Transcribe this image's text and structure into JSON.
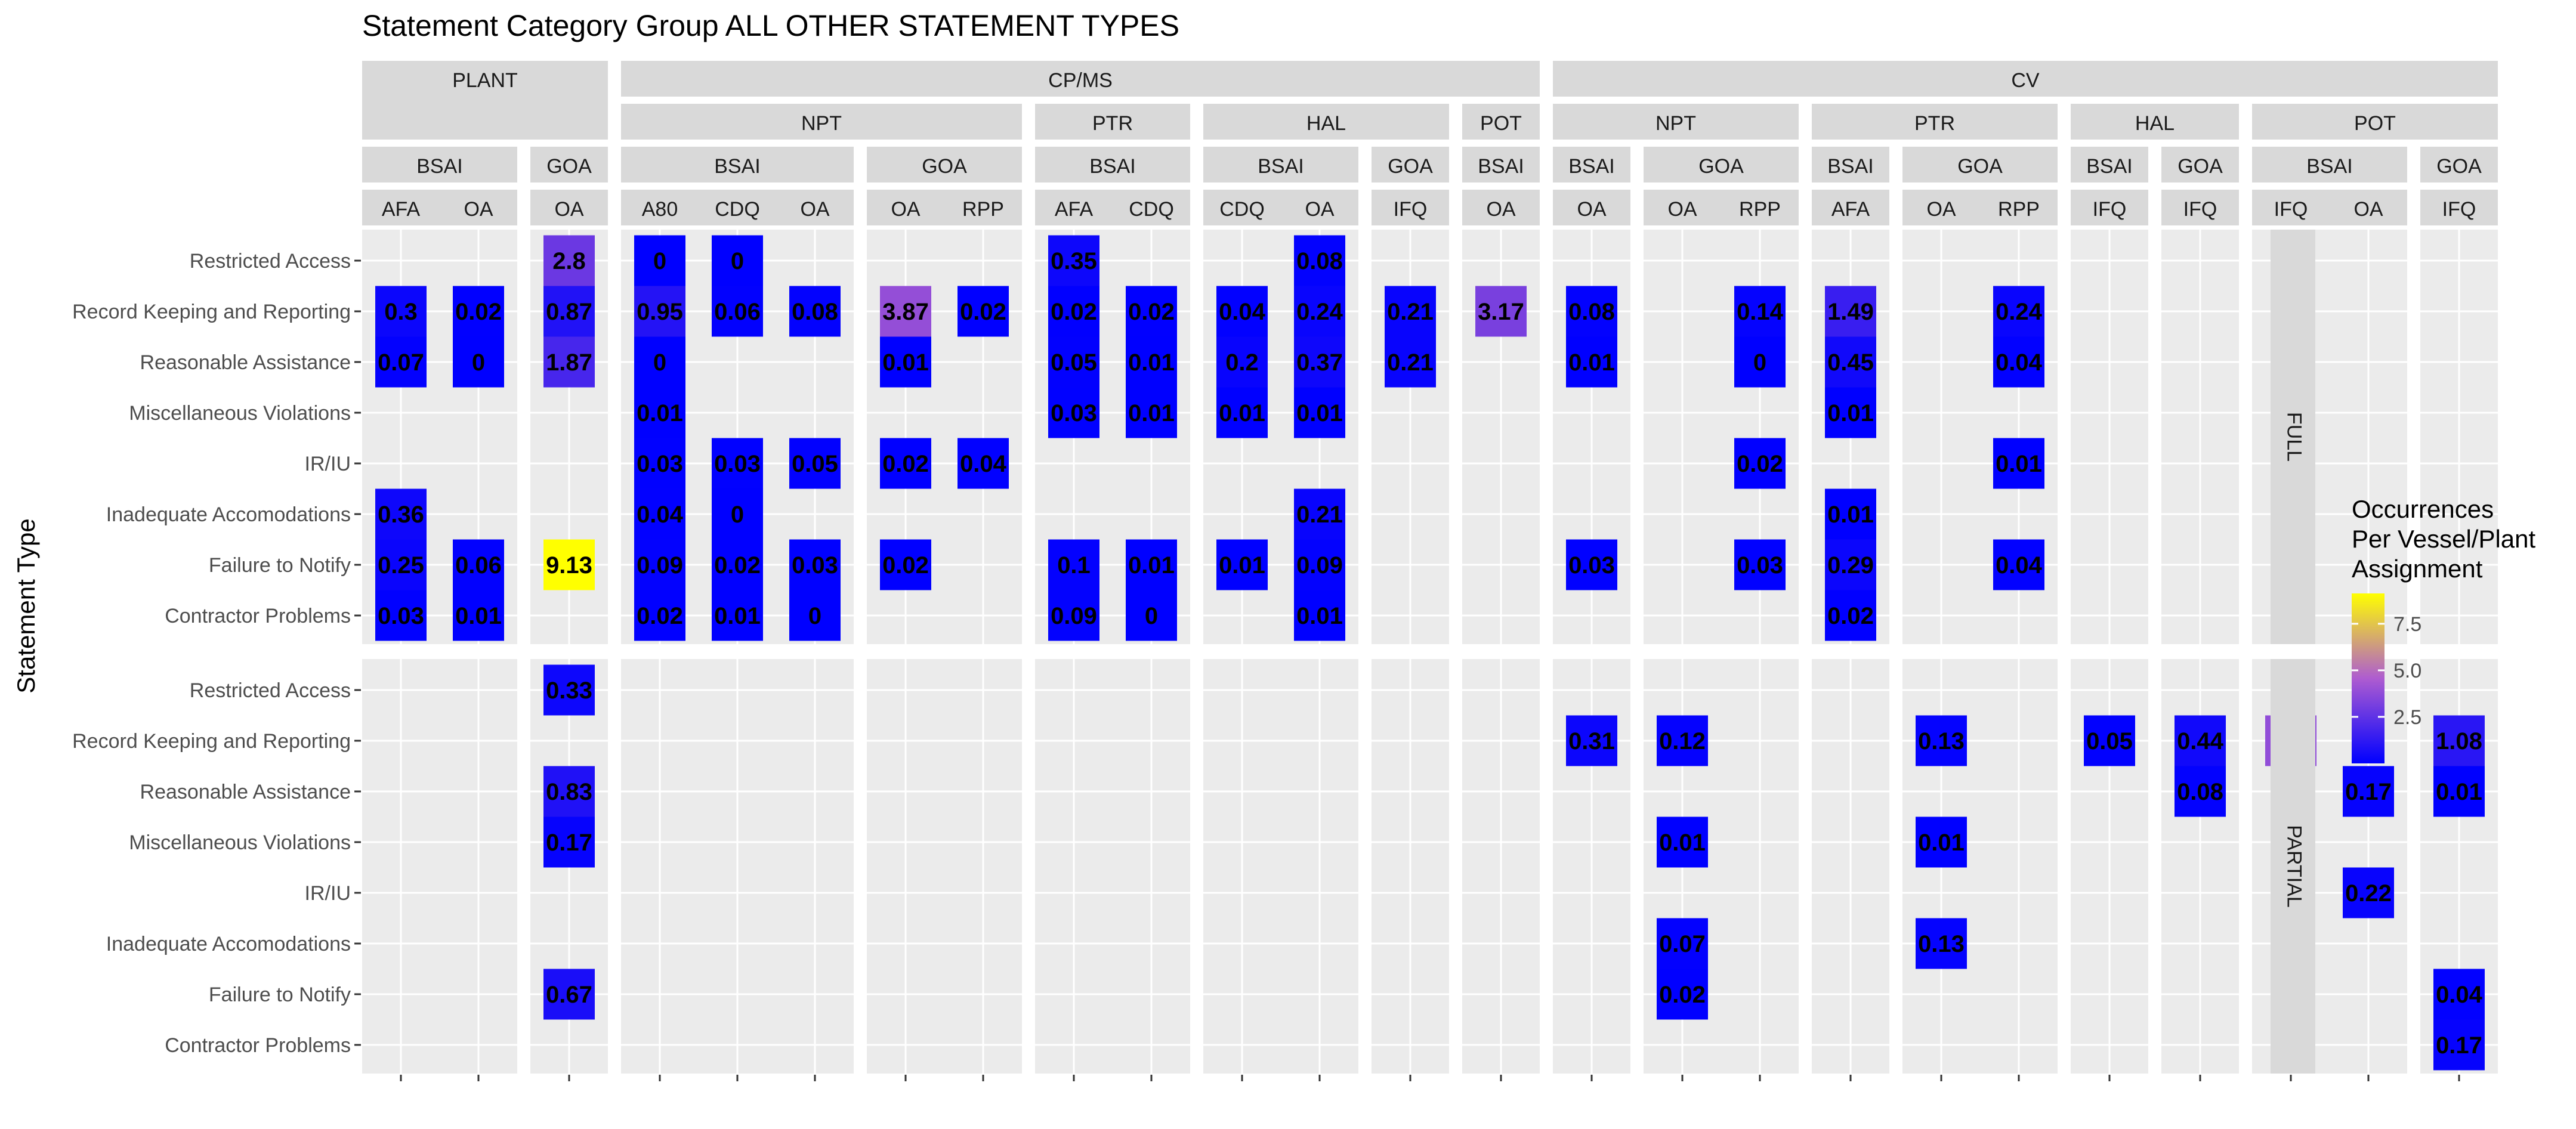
{
  "chart_data": {
    "type": "heatmap",
    "title": "Statement Category Group ALL OTHER STATEMENT TYPES",
    "ylabel": "Statement Type",
    "xlabel": "",
    "y_categories": [
      "Restricted Access",
      "Record Keeping and Reporting",
      "Reasonable Assistance",
      "Miscellaneous Violations",
      "IR/IU",
      "Inadequate Accomodations",
      "Failure to Notify",
      "Contractor Problems"
    ],
    "row_panels": [
      "FULL",
      "PARTIAL"
    ],
    "legend": {
      "title_lines": [
        "Occurrences",
        "Per Vessel/Plant",
        "Assignment"
      ],
      "ticks": [
        2.5,
        5.0,
        7.5
      ],
      "tick_labels": [
        "2.5",
        "5.0",
        "7.5"
      ],
      "range": [
        0.0,
        9.13
      ],
      "colors": [
        "#0000FF",
        "#FFFF00"
      ],
      "position": "right"
    },
    "panels": [
      {
        "group": "PLANT",
        "sub": "",
        "area": "BSAI",
        "columns": [
          "AFA",
          "OA"
        ]
      },
      {
        "group": "PLANT",
        "sub": "",
        "area": "GOA",
        "columns": [
          "OA"
        ]
      },
      {
        "group": "CP/MS",
        "sub": "NPT",
        "area": "BSAI",
        "columns": [
          "A80",
          "CDQ",
          "OA"
        ]
      },
      {
        "group": "CP/MS",
        "sub": "NPT",
        "area": "GOA",
        "columns": [
          "OA",
          "RPP"
        ]
      },
      {
        "group": "CP/MS",
        "sub": "PTR",
        "area": "BSAI",
        "columns": [
          "AFA",
          "CDQ"
        ]
      },
      {
        "group": "CP/MS",
        "sub": "HAL",
        "area": "BSAI",
        "columns": [
          "CDQ",
          "OA"
        ]
      },
      {
        "group": "CP/MS",
        "sub": "HAL",
        "area": "GOA",
        "columns": [
          "IFQ"
        ]
      },
      {
        "group": "CP/MS",
        "sub": "POT",
        "area": "BSAI",
        "columns": [
          "OA"
        ]
      },
      {
        "group": "CV",
        "sub": "NPT",
        "area": "BSAI",
        "columns": [
          "OA"
        ]
      },
      {
        "group": "CV",
        "sub": "NPT",
        "area": "GOA",
        "columns": [
          "OA",
          "RPP"
        ]
      },
      {
        "group": "CV",
        "sub": "PTR",
        "area": "BSAI",
        "columns": [
          "AFA"
        ]
      },
      {
        "group": "CV",
        "sub": "PTR",
        "area": "GOA",
        "columns": [
          "OA",
          "RPP"
        ]
      },
      {
        "group": "CV",
        "sub": "HAL",
        "area": "BSAI",
        "columns": [
          "IFQ"
        ]
      },
      {
        "group": "CV",
        "sub": "HAL",
        "area": "GOA",
        "columns": [
          "IFQ"
        ]
      },
      {
        "group": "CV",
        "sub": "POT",
        "area": "BSAI",
        "columns": [
          "IFQ",
          "OA"
        ]
      },
      {
        "group": "CV",
        "sub": "POT",
        "area": "GOA",
        "columns": [
          "IFQ"
        ]
      }
    ],
    "cells": [
      {
        "p": 0,
        "c": 0,
        "row": "FULL",
        "y": 1,
        "v": 0.3,
        "label": "0.3"
      },
      {
        "p": 0,
        "c": 0,
        "row": "FULL",
        "y": 2,
        "v": 0.07,
        "label": "0.07"
      },
      {
        "p": 0,
        "c": 0,
        "row": "FULL",
        "y": 5,
        "v": 0.36,
        "label": "0.36"
      },
      {
        "p": 0,
        "c": 0,
        "row": "FULL",
        "y": 6,
        "v": 0.25,
        "label": "0.25"
      },
      {
        "p": 0,
        "c": 0,
        "row": "FULL",
        "y": 7,
        "v": 0.03,
        "label": "0.03"
      },
      {
        "p": 0,
        "c": 1,
        "row": "FULL",
        "y": 1,
        "v": 0.02,
        "label": "0.02"
      },
      {
        "p": 0,
        "c": 1,
        "row": "FULL",
        "y": 2,
        "v": 0.0,
        "label": "0"
      },
      {
        "p": 0,
        "c": 1,
        "row": "FULL",
        "y": 6,
        "v": 0.06,
        "label": "0.06"
      },
      {
        "p": 0,
        "c": 1,
        "row": "FULL",
        "y": 7,
        "v": 0.01,
        "label": "0.01"
      },
      {
        "p": 1,
        "c": 0,
        "row": "FULL",
        "y": 0,
        "v": 2.8,
        "label": "2.8"
      },
      {
        "p": 1,
        "c": 0,
        "row": "FULL",
        "y": 1,
        "v": 0.87,
        "label": "0.87"
      },
      {
        "p": 1,
        "c": 0,
        "row": "FULL",
        "y": 2,
        "v": 1.87,
        "label": "1.87"
      },
      {
        "p": 1,
        "c": 0,
        "row": "FULL",
        "y": 6,
        "v": 9.13,
        "label": "9.13"
      },
      {
        "p": 1,
        "c": 0,
        "row": "PARTIAL",
        "y": 0,
        "v": 0.33,
        "label": "0.33"
      },
      {
        "p": 1,
        "c": 0,
        "row": "PARTIAL",
        "y": 2,
        "v": 0.83,
        "label": "0.83"
      },
      {
        "p": 1,
        "c": 0,
        "row": "PARTIAL",
        "y": 3,
        "v": 0.17,
        "label": "0.17"
      },
      {
        "p": 1,
        "c": 0,
        "row": "PARTIAL",
        "y": 6,
        "v": 0.67,
        "label": "0.67"
      },
      {
        "p": 2,
        "c": 0,
        "row": "FULL",
        "y": 0,
        "v": 0.0,
        "label": "0"
      },
      {
        "p": 2,
        "c": 0,
        "row": "FULL",
        "y": 1,
        "v": 0.95,
        "label": "0.95"
      },
      {
        "p": 2,
        "c": 0,
        "row": "FULL",
        "y": 2,
        "v": 0.0,
        "label": "0"
      },
      {
        "p": 2,
        "c": 0,
        "row": "FULL",
        "y": 3,
        "v": 0.01,
        "label": "0.01"
      },
      {
        "p": 2,
        "c": 0,
        "row": "FULL",
        "y": 4,
        "v": 0.03,
        "label": "0.03"
      },
      {
        "p": 2,
        "c": 0,
        "row": "FULL",
        "y": 5,
        "v": 0.04,
        "label": "0.04"
      },
      {
        "p": 2,
        "c": 0,
        "row": "FULL",
        "y": 6,
        "v": 0.09,
        "label": "0.09"
      },
      {
        "p": 2,
        "c": 0,
        "row": "FULL",
        "y": 7,
        "v": 0.02,
        "label": "0.02"
      },
      {
        "p": 2,
        "c": 1,
        "row": "FULL",
        "y": 0,
        "v": 0.0,
        "label": "0"
      },
      {
        "p": 2,
        "c": 1,
        "row": "FULL",
        "y": 1,
        "v": 0.06,
        "label": "0.06"
      },
      {
        "p": 2,
        "c": 1,
        "row": "FULL",
        "y": 4,
        "v": 0.03,
        "label": "0.03"
      },
      {
        "p": 2,
        "c": 1,
        "row": "FULL",
        "y": 5,
        "v": 0.0,
        "label": "0"
      },
      {
        "p": 2,
        "c": 1,
        "row": "FULL",
        "y": 6,
        "v": 0.02,
        "label": "0.02"
      },
      {
        "p": 2,
        "c": 1,
        "row": "FULL",
        "y": 7,
        "v": 0.01,
        "label": "0.01"
      },
      {
        "p": 2,
        "c": 2,
        "row": "FULL",
        "y": 1,
        "v": 0.08,
        "label": "0.08"
      },
      {
        "p": 2,
        "c": 2,
        "row": "FULL",
        "y": 4,
        "v": 0.05,
        "label": "0.05"
      },
      {
        "p": 2,
        "c": 2,
        "row": "FULL",
        "y": 6,
        "v": 0.03,
        "label": "0.03"
      },
      {
        "p": 2,
        "c": 2,
        "row": "FULL",
        "y": 7,
        "v": 0.0,
        "label": "0"
      },
      {
        "p": 3,
        "c": 0,
        "row": "FULL",
        "y": 1,
        "v": 3.87,
        "label": "3.87"
      },
      {
        "p": 3,
        "c": 0,
        "row": "FULL",
        "y": 2,
        "v": 0.01,
        "label": "0.01"
      },
      {
        "p": 3,
        "c": 0,
        "row": "FULL",
        "y": 4,
        "v": 0.02,
        "label": "0.02"
      },
      {
        "p": 3,
        "c": 0,
        "row": "FULL",
        "y": 6,
        "v": 0.02,
        "label": "0.02"
      },
      {
        "p": 3,
        "c": 1,
        "row": "FULL",
        "y": 1,
        "v": 0.02,
        "label": "0.02"
      },
      {
        "p": 3,
        "c": 1,
        "row": "FULL",
        "y": 4,
        "v": 0.04,
        "label": "0.04"
      },
      {
        "p": 4,
        "c": 0,
        "row": "FULL",
        "y": 0,
        "v": 0.35,
        "label": "0.35"
      },
      {
        "p": 4,
        "c": 0,
        "row": "FULL",
        "y": 1,
        "v": 0.02,
        "label": "0.02"
      },
      {
        "p": 4,
        "c": 0,
        "row": "FULL",
        "y": 2,
        "v": 0.05,
        "label": "0.05"
      },
      {
        "p": 4,
        "c": 0,
        "row": "FULL",
        "y": 3,
        "v": 0.03,
        "label": "0.03"
      },
      {
        "p": 4,
        "c": 0,
        "row": "FULL",
        "y": 6,
        "v": 0.1,
        "label": "0.1"
      },
      {
        "p": 4,
        "c": 0,
        "row": "FULL",
        "y": 7,
        "v": 0.09,
        "label": "0.09"
      },
      {
        "p": 4,
        "c": 1,
        "row": "FULL",
        "y": 1,
        "v": 0.02,
        "label": "0.02"
      },
      {
        "p": 4,
        "c": 1,
        "row": "FULL",
        "y": 2,
        "v": 0.01,
        "label": "0.01"
      },
      {
        "p": 4,
        "c": 1,
        "row": "FULL",
        "y": 3,
        "v": 0.01,
        "label": "0.01"
      },
      {
        "p": 4,
        "c": 1,
        "row": "FULL",
        "y": 6,
        "v": 0.01,
        "label": "0.01"
      },
      {
        "p": 4,
        "c": 1,
        "row": "FULL",
        "y": 7,
        "v": 0.0,
        "label": "0"
      },
      {
        "p": 5,
        "c": 0,
        "row": "FULL",
        "y": 1,
        "v": 0.04,
        "label": "0.04"
      },
      {
        "p": 5,
        "c": 0,
        "row": "FULL",
        "y": 2,
        "v": 0.2,
        "label": "0.2"
      },
      {
        "p": 5,
        "c": 0,
        "row": "FULL",
        "y": 3,
        "v": 0.01,
        "label": "0.01"
      },
      {
        "p": 5,
        "c": 0,
        "row": "FULL",
        "y": 6,
        "v": 0.01,
        "label": "0.01"
      },
      {
        "p": 5,
        "c": 1,
        "row": "FULL",
        "y": 0,
        "v": 0.08,
        "label": "0.08"
      },
      {
        "p": 5,
        "c": 1,
        "row": "FULL",
        "y": 1,
        "v": 0.24,
        "label": "0.24"
      },
      {
        "p": 5,
        "c": 1,
        "row": "FULL",
        "y": 2,
        "v": 0.37,
        "label": "0.37"
      },
      {
        "p": 5,
        "c": 1,
        "row": "FULL",
        "y": 3,
        "v": 0.01,
        "label": "0.01"
      },
      {
        "p": 5,
        "c": 1,
        "row": "FULL",
        "y": 5,
        "v": 0.21,
        "label": "0.21"
      },
      {
        "p": 5,
        "c": 1,
        "row": "FULL",
        "y": 6,
        "v": 0.09,
        "label": "0.09"
      },
      {
        "p": 5,
        "c": 1,
        "row": "FULL",
        "y": 7,
        "v": 0.01,
        "label": "0.01"
      },
      {
        "p": 6,
        "c": 0,
        "row": "FULL",
        "y": 1,
        "v": 0.21,
        "label": "0.21"
      },
      {
        "p": 6,
        "c": 0,
        "row": "FULL",
        "y": 2,
        "v": 0.21,
        "label": "0.21"
      },
      {
        "p": 7,
        "c": 0,
        "row": "FULL",
        "y": 1,
        "v": 3.17,
        "label": "3.17"
      },
      {
        "p": 8,
        "c": 0,
        "row": "FULL",
        "y": 1,
        "v": 0.08,
        "label": "0.08"
      },
      {
        "p": 8,
        "c": 0,
        "row": "FULL",
        "y": 2,
        "v": 0.01,
        "label": "0.01"
      },
      {
        "p": 8,
        "c": 0,
        "row": "FULL",
        "y": 6,
        "v": 0.03,
        "label": "0.03"
      },
      {
        "p": 8,
        "c": 0,
        "row": "PARTIAL",
        "y": 1,
        "v": 0.31,
        "label": "0.31"
      },
      {
        "p": 9,
        "c": 0,
        "row": "PARTIAL",
        "y": 1,
        "v": 0.12,
        "label": "0.12"
      },
      {
        "p": 9,
        "c": 0,
        "row": "PARTIAL",
        "y": 3,
        "v": 0.01,
        "label": "0.01"
      },
      {
        "p": 9,
        "c": 0,
        "row": "PARTIAL",
        "y": 5,
        "v": 0.07,
        "label": "0.07"
      },
      {
        "p": 9,
        "c": 0,
        "row": "PARTIAL",
        "y": 6,
        "v": 0.02,
        "label": "0.02"
      },
      {
        "p": 9,
        "c": 1,
        "row": "FULL",
        "y": 1,
        "v": 0.14,
        "label": "0.14"
      },
      {
        "p": 9,
        "c": 1,
        "row": "FULL",
        "y": 2,
        "v": 0.0,
        "label": "0"
      },
      {
        "p": 9,
        "c": 1,
        "row": "FULL",
        "y": 4,
        "v": 0.02,
        "label": "0.02"
      },
      {
        "p": 9,
        "c": 1,
        "row": "FULL",
        "y": 6,
        "v": 0.03,
        "label": "0.03"
      },
      {
        "p": 10,
        "c": 0,
        "row": "FULL",
        "y": 1,
        "v": 1.49,
        "label": "1.49"
      },
      {
        "p": 10,
        "c": 0,
        "row": "FULL",
        "y": 2,
        "v": 0.45,
        "label": "0.45"
      },
      {
        "p": 10,
        "c": 0,
        "row": "FULL",
        "y": 3,
        "v": 0.01,
        "label": "0.01"
      },
      {
        "p": 10,
        "c": 0,
        "row": "FULL",
        "y": 5,
        "v": 0.01,
        "label": "0.01"
      },
      {
        "p": 10,
        "c": 0,
        "row": "FULL",
        "y": 6,
        "v": 0.29,
        "label": "0.29"
      },
      {
        "p": 10,
        "c": 0,
        "row": "FULL",
        "y": 7,
        "v": 0.02,
        "label": "0.02"
      },
      {
        "p": 11,
        "c": 0,
        "row": "PARTIAL",
        "y": 1,
        "v": 0.13,
        "label": "0.13"
      },
      {
        "p": 11,
        "c": 0,
        "row": "PARTIAL",
        "y": 3,
        "v": 0.01,
        "label": "0.01"
      },
      {
        "p": 11,
        "c": 0,
        "row": "PARTIAL",
        "y": 5,
        "v": 0.13,
        "label": "0.13"
      },
      {
        "p": 11,
        "c": 1,
        "row": "FULL",
        "y": 1,
        "v": 0.24,
        "label": "0.24"
      },
      {
        "p": 11,
        "c": 1,
        "row": "FULL",
        "y": 2,
        "v": 0.04,
        "label": "0.04"
      },
      {
        "p": 11,
        "c": 1,
        "row": "FULL",
        "y": 4,
        "v": 0.01,
        "label": "0.01"
      },
      {
        "p": 11,
        "c": 1,
        "row": "FULL",
        "y": 6,
        "v": 0.04,
        "label": "0.04"
      },
      {
        "p": 12,
        "c": 0,
        "row": "PARTIAL",
        "y": 1,
        "v": 0.05,
        "label": "0.05"
      },
      {
        "p": 13,
        "c": 0,
        "row": "PARTIAL",
        "y": 1,
        "v": 0.44,
        "label": "0.44"
      },
      {
        "p": 13,
        "c": 0,
        "row": "PARTIAL",
        "y": 2,
        "v": 0.08,
        "label": "0.08"
      },
      {
        "p": 14,
        "c": 0,
        "row": "PARTIAL",
        "y": 1,
        "v": 3.8,
        "label": "3.8"
      },
      {
        "p": 14,
        "c": 1,
        "row": "PARTIAL",
        "y": 2,
        "v": 0.17,
        "label": "0.17"
      },
      {
        "p": 14,
        "c": 1,
        "row": "PARTIAL",
        "y": 4,
        "v": 0.22,
        "label": "0.22"
      },
      {
        "p": 15,
        "c": 0,
        "row": "PARTIAL",
        "y": 1,
        "v": 1.08,
        "label": "1.08"
      },
      {
        "p": 15,
        "c": 0,
        "row": "PARTIAL",
        "y": 2,
        "v": 0.01,
        "label": "0.01"
      },
      {
        "p": 15,
        "c": 0,
        "row": "PARTIAL",
        "y": 6,
        "v": 0.04,
        "label": "0.04"
      },
      {
        "p": 15,
        "c": 0,
        "row": "PARTIAL",
        "y": 7,
        "v": 0.17,
        "label": "0.17"
      }
    ]
  }
}
